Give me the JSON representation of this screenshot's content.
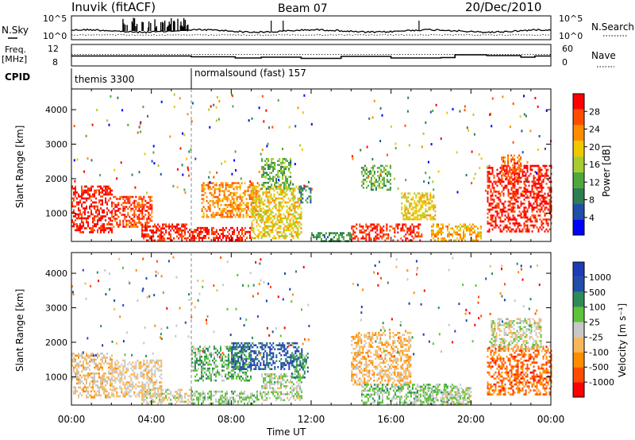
{
  "header": {
    "station": "Inuvik (fitACF)",
    "beam": "Beam 07",
    "date": "20/Dec/2010"
  },
  "top_panels": {
    "nsky": {
      "label": "N.Sky",
      "ticks_left": [
        "10^5",
        "10^0"
      ],
      "right_label": "N.Search",
      "ticks_right": [
        "10^5",
        "10^0"
      ]
    },
    "freq": {
      "label_line1": "Freq.",
      "label_line2": "[MHz]",
      "ticks_left": [
        "12",
        "8"
      ],
      "right_label": "Nave",
      "ticks_right": [
        "60",
        "0"
      ]
    },
    "cpid": {
      "label": "CPID",
      "segments": [
        {
          "name": "themis 3300",
          "start_hour": 0
        },
        {
          "name": "normalsound (fast) 157",
          "start_hour": 6
        }
      ]
    }
  },
  "colors": {
    "power_scale": [
      "#0000ff",
      "#1f4fa8",
      "#2e7d55",
      "#4fa83c",
      "#a8cc2e",
      "#f0c800",
      "#ff8c00",
      "#ff4d00",
      "#ff0000"
    ],
    "velocity_scale": [
      "#ff0000",
      "#ff4d00",
      "#ff8c00",
      "#f7b85c",
      "#c8c8c8",
      "#5ec23a",
      "#2e8b57",
      "#1f4fa8",
      "#1e3cb4"
    ]
  },
  "chart_data": [
    {
      "type": "heatmap",
      "name": "Power",
      "ylabel": "Slant Range [km]",
      "xlabel": "",
      "xlim": [
        0,
        24
      ],
      "ylim": [
        180,
        4600
      ],
      "yticks": [
        "1000",
        "2000",
        "3000",
        "4000"
      ],
      "colorbar": {
        "label": "Power [dB]",
        "ticks": [
          "4",
          "8",
          "12",
          "16",
          "20",
          "24",
          "28"
        ],
        "range": [
          0,
          30
        ]
      },
      "regions": [
        {
          "t0": 0.0,
          "t1": 2.0,
          "r0": 450,
          "r1": 1800,
          "v": 28
        },
        {
          "t0": 2.0,
          "t1": 4.0,
          "r0": 600,
          "r1": 1500,
          "v": 26
        },
        {
          "t0": 3.5,
          "t1": 5.8,
          "r0": 200,
          "r1": 700,
          "v": 27
        },
        {
          "t0": 5.8,
          "t1": 9.0,
          "r0": 200,
          "r1": 600,
          "v": 28
        },
        {
          "t0": 6.5,
          "t1": 9.5,
          "r0": 900,
          "r1": 1900,
          "v": 22
        },
        {
          "t0": 9.0,
          "t1": 11.5,
          "r0": 300,
          "r1": 1800,
          "v": 18
        },
        {
          "t0": 9.5,
          "t1": 11.0,
          "r0": 1700,
          "r1": 2600,
          "v": 12
        },
        {
          "t0": 11.3,
          "t1": 12.0,
          "r0": 1300,
          "r1": 1800,
          "v": 8
        },
        {
          "t0": 12.0,
          "t1": 14.0,
          "r0": 200,
          "r1": 450,
          "v": 10
        },
        {
          "t0": 14.0,
          "t1": 17.5,
          "r0": 220,
          "r1": 700,
          "v": 27
        },
        {
          "t0": 14.5,
          "t1": 16.0,
          "r0": 1700,
          "r1": 2400,
          "v": 12
        },
        {
          "t0": 16.5,
          "t1": 18.2,
          "r0": 800,
          "r1": 1600,
          "v": 18
        },
        {
          "t0": 18.0,
          "t1": 20.5,
          "r0": 200,
          "r1": 700,
          "v": 20
        },
        {
          "t0": 20.8,
          "t1": 24.0,
          "r0": 500,
          "r1": 2400,
          "v": 28
        },
        {
          "t0": 21.5,
          "t1": 22.5,
          "r0": 2000,
          "r1": 2700,
          "v": 24
        }
      ]
    },
    {
      "type": "heatmap",
      "name": "Velocity",
      "ylabel": "Slant Range [km]",
      "xlabel": "Time UT",
      "xlim": [
        0,
        24
      ],
      "ylim": [
        180,
        4600
      ],
      "xticks": [
        "00:00",
        "04:00",
        "08:00",
        "12:00",
        "16:00",
        "20:00",
        "00:00"
      ],
      "yticks": [
        "1000",
        "2000",
        "3000",
        "4000"
      ],
      "colorbar": {
        "label": "Velocity [m s⁻¹]",
        "ticks": [
          "-1000",
          "-500",
          "-100",
          "-25",
          "25",
          "100",
          "500",
          "1000"
        ],
        "range": [
          -1200,
          1200
        ]
      },
      "regions": [
        {
          "t0": 0.0,
          "t1": 2.0,
          "r0": 400,
          "r1": 1700,
          "v": -200
        },
        {
          "t0": 2.0,
          "t1": 4.5,
          "r0": 450,
          "r1": 1500,
          "v": -150
        },
        {
          "t0": 3.5,
          "t1": 6.0,
          "r0": 200,
          "r1": 650,
          "v": -60
        },
        {
          "t0": 6.0,
          "t1": 9.5,
          "r0": 200,
          "r1": 600,
          "v": 150
        },
        {
          "t0": 6.0,
          "t1": 9.0,
          "r0": 900,
          "r1": 1900,
          "v": 300
        },
        {
          "t0": 8.0,
          "t1": 11.5,
          "r0": 1200,
          "r1": 2000,
          "v": 800
        },
        {
          "t0": 9.5,
          "t1": 11.5,
          "r0": 300,
          "r1": 1100,
          "v": 120
        },
        {
          "t0": 11.0,
          "t1": 11.8,
          "r0": 1000,
          "r1": 1700,
          "v": 500
        },
        {
          "t0": 14.0,
          "t1": 17.0,
          "r0": 800,
          "r1": 2300,
          "v": -300
        },
        {
          "t0": 14.5,
          "t1": 19.5,
          "r0": 200,
          "r1": 800,
          "v": 200
        },
        {
          "t0": 17.5,
          "t1": 20.0,
          "r0": 200,
          "r1": 700,
          "v": 120
        },
        {
          "t0": 20.8,
          "t1": 24.0,
          "r0": 500,
          "r1": 1900,
          "v": -700
        },
        {
          "t0": 21.0,
          "t1": 23.5,
          "r0": 1800,
          "r1": 2700,
          "v": 0
        }
      ]
    }
  ]
}
